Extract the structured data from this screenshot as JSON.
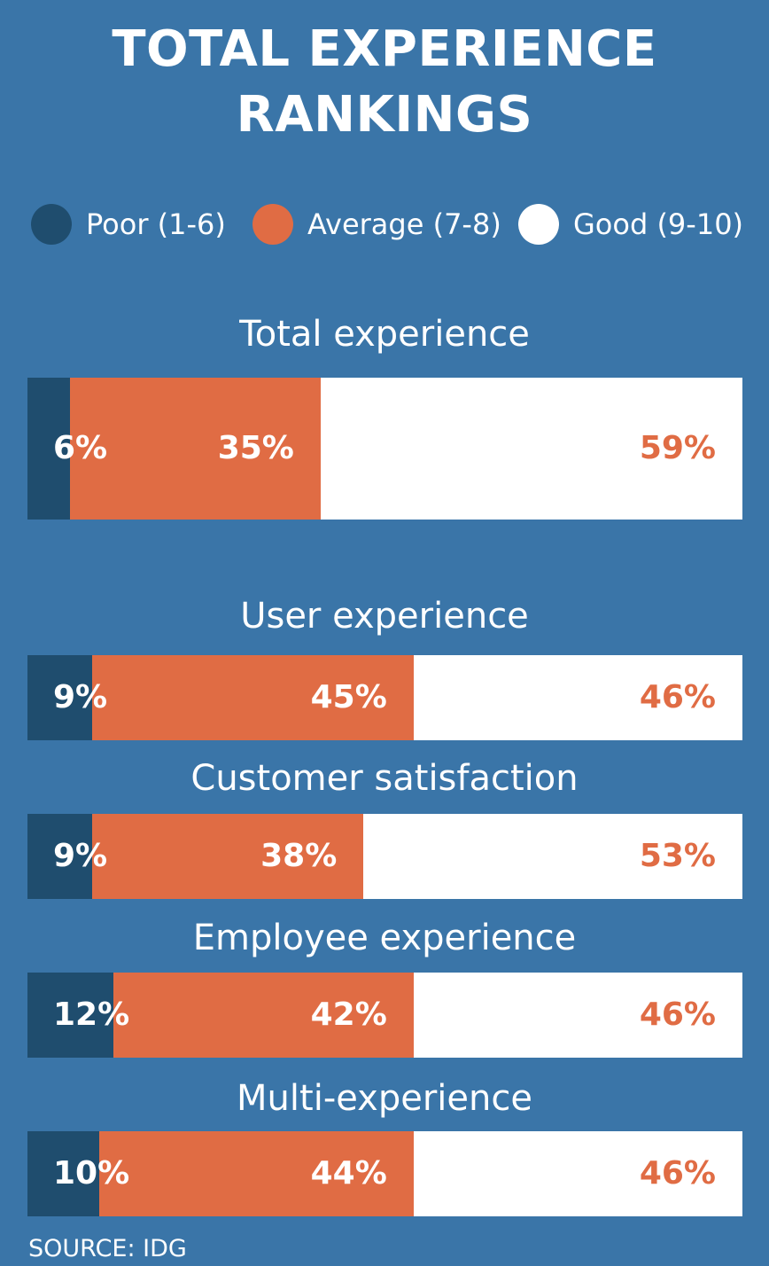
{
  "title_line1": "TOTAL EXPERIENCE",
  "title_line2": "RANKINGS",
  "legend": [
    {
      "label": "Poor (1-6)",
      "color": "#1F4D6E"
    },
    {
      "label": "Average (7-8)",
      "color": "#E06C44"
    },
    {
      "label": "Good (9-10)",
      "color": "#FFFFFF"
    }
  ],
  "source": "SOURCE: IDG",
  "chart_data": {
    "type": "bar",
    "orientation": "horizontal",
    "stacked": true,
    "title": "TOTAL EXPERIENCE RANKINGS",
    "categories": [
      "Total experience",
      "User experience",
      "Customer satisfaction",
      "Employee experience",
      "Multi-experience"
    ],
    "series": [
      {
        "name": "Poor (1-6)",
        "color": "#1F4D6E",
        "values": [
          6,
          9,
          9,
          12,
          10
        ],
        "labels": [
          "6%",
          "9%",
          "9%",
          "12%",
          "10%"
        ]
      },
      {
        "name": "Average (7-8)",
        "color": "#E06C44",
        "values": [
          35,
          45,
          38,
          42,
          44
        ],
        "labels": [
          "35%",
          "45%",
          "38%",
          "42%",
          "44%"
        ]
      },
      {
        "name": "Good (9-10)",
        "color": "#FFFFFF",
        "values": [
          59,
          46,
          53,
          46,
          46
        ],
        "labels": [
          "59%",
          "46%",
          "53%",
          "46%",
          "46%"
        ]
      }
    ],
    "xlim": [
      0,
      100
    ],
    "unit": "%"
  }
}
